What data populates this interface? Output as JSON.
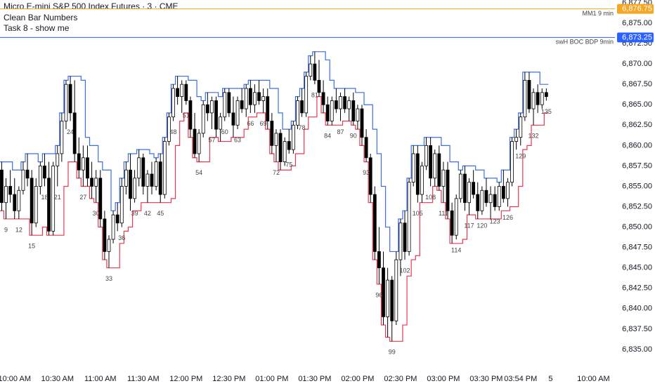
{
  "chart_data": {
    "type": "candlestick",
    "title": "Micro E-mini S&P 500 Index Futures · 3 · CME",
    "subtitle": "Clean Bar Numbers",
    "annotation": "Task 8 - show me",
    "up_color": "#ffffff",
    "down_color": "#000000",
    "upper_color": "#3d6fe0",
    "lower_color": "#e8384f",
    "xlim": [
      7.6,
      151
    ],
    "xticks": [
      {
        "value": 11,
        "label": "10:00 AM"
      },
      {
        "value": 21,
        "label": "10:30 AM"
      },
      {
        "value": 31,
        "label": "11:00 AM"
      },
      {
        "value": 41,
        "label": "11:30 AM"
      },
      {
        "value": 51,
        "label": "12:00 PM"
      },
      {
        "value": 61,
        "label": "12:30 PM"
      },
      {
        "value": 71,
        "label": "01:00 PM"
      },
      {
        "value": 81,
        "label": "01:30 PM"
      },
      {
        "value": 91,
        "label": "02:00 PM"
      },
      {
        "value": 101,
        "label": "02:30 PM"
      },
      {
        "value": 111,
        "label": "03:00 PM"
      },
      {
        "value": 121,
        "label": "03:30 PM"
      },
      {
        "value": 129,
        "label": "03:54 PM"
      },
      {
        "value": 136,
        "label": "5"
      },
      {
        "value": 146,
        "label": "10:00 AM"
      }
    ],
    "ylim": [
      6833.1,
      6877.84
    ],
    "yticks": [
      {
        "value": 6835,
        "label": "6,835.00"
      },
      {
        "value": 6837.5,
        "label": "6,837.50"
      },
      {
        "value": 6840,
        "label": "6,840.00"
      },
      {
        "value": 6842.5,
        "label": "6,842.50"
      },
      {
        "value": 6845,
        "label": "6,845.00"
      },
      {
        "value": 6847.5,
        "label": "6,847.50"
      },
      {
        "value": 6850,
        "label": "6,850.00"
      },
      {
        "value": 6852.5,
        "label": "6,852.50"
      },
      {
        "value": 6855,
        "label": "6,855.00"
      },
      {
        "value": 6857.5,
        "label": "6,857.50"
      },
      {
        "value": 6860,
        "label": "6,860.00"
      },
      {
        "value": 6862.5,
        "label": "6,862.50"
      },
      {
        "value": 6865,
        "label": "6,865.00"
      },
      {
        "value": 6867.5,
        "label": "6,867.50"
      },
      {
        "value": 6870,
        "label": "6,870.00"
      },
      {
        "value": 6872.5,
        "label": "6,872.50"
      },
      {
        "value": 6875,
        "label": "6,875.00"
      },
      {
        "value": 6877.5,
        "label": "6,877.50"
      }
    ],
    "levels": [
      {
        "name": "MM1 9 min",
        "value": 6876.75,
        "label": "6,876.75",
        "color": "#f5a623"
      },
      {
        "name": "swH BOC BDP 9min",
        "value": 6873.25,
        "label": "6,873.25",
        "color": "#2962ff"
      }
    ],
    "bar_numbers": [
      9,
      12,
      15,
      18,
      21,
      24,
      27,
      30,
      33,
      36,
      39,
      42,
      45,
      48,
      51,
      54,
      57,
      60,
      63,
      66,
      69,
      72,
      75,
      78,
      81,
      84,
      87,
      90,
      93,
      96,
      99,
      102,
      105,
      108,
      111,
      114,
      117,
      120,
      123,
      126,
      129,
      132,
      135
    ],
    "x": [
      8,
      9,
      10,
      11,
      12,
      13,
      14,
      15,
      16,
      17,
      18,
      19,
      20,
      21,
      22,
      23,
      24,
      25,
      26,
      27,
      28,
      29,
      30,
      31,
      32,
      33,
      34,
      35,
      36,
      37,
      38,
      39,
      40,
      41,
      42,
      43,
      44,
      45,
      46,
      47,
      48,
      49,
      50,
      51,
      52,
      53,
      54,
      55,
      56,
      57,
      58,
      59,
      60,
      61,
      62,
      63,
      64,
      65,
      66,
      67,
      68,
      69,
      70,
      71,
      72,
      73,
      74,
      75,
      76,
      77,
      78,
      79,
      80,
      81,
      82,
      83,
      84,
      85,
      86,
      87,
      88,
      89,
      90,
      91,
      92,
      93,
      94,
      95,
      96,
      97,
      98,
      99,
      100,
      101,
      102,
      103,
      104,
      105,
      106,
      107,
      108,
      109,
      110,
      111,
      112,
      113,
      114,
      115,
      116,
      117,
      118,
      119,
      120,
      121,
      122,
      123,
      124,
      125,
      126,
      127,
      128,
      129,
      130,
      131,
      132,
      133,
      134,
      135
    ],
    "ohlc": [
      [
        6857,
        6858,
        6852,
        6853
      ],
      [
        6853,
        6856,
        6851,
        6855
      ],
      [
        6855,
        6857,
        6853,
        6854
      ],
      [
        6854,
        6856,
        6851,
        6852
      ],
      [
        6852,
        6855,
        6851,
        6854.5
      ],
      [
        6854.5,
        6858,
        6854,
        6857
      ],
      [
        6857,
        6859,
        6855,
        6856
      ],
      [
        6856,
        6857,
        6849,
        6850.5
      ],
      [
        6850.5,
        6856,
        6850,
        6855
      ],
      [
        6855,
        6858,
        6854,
        6857.5
      ],
      [
        6857.5,
        6859,
        6855,
        6856
      ],
      [
        6856,
        6858,
        6849,
        6849.5
      ],
      [
        6849.5,
        6858,
        6849,
        6857.5
      ],
      [
        6857.5,
        6860,
        6855,
        6859
      ],
      [
        6859,
        6864,
        6858,
        6863
      ],
      [
        6863,
        6868,
        6862,
        6867.5
      ],
      [
        6867.5,
        6868.5,
        6863,
        6864
      ],
      [
        6864,
        6868,
        6858,
        6859
      ],
      [
        6859,
        6861,
        6856,
        6857
      ],
      [
        6857,
        6860,
        6855,
        6858.5
      ],
      [
        6858.5,
        6860,
        6855,
        6856
      ],
      [
        6856,
        6858,
        6853.5,
        6855
      ],
      [
        6855,
        6857,
        6853,
        6856
      ],
      [
        6856,
        6857,
        6850,
        6851
      ],
      [
        6851,
        6852,
        6846,
        6847
      ],
      [
        6847,
        6849,
        6845,
        6848.5
      ],
      [
        6848.5,
        6852,
        6848,
        6851.5
      ],
      [
        6851.5,
        6853,
        6849.5,
        6850.5
      ],
      [
        6850.5,
        6856,
        6850,
        6855
      ],
      [
        6855,
        6858,
        6854,
        6857
      ],
      [
        6857,
        6859,
        6852,
        6853.5
      ],
      [
        6853.5,
        6857,
        6853,
        6856
      ],
      [
        6856,
        6859.5,
        6855,
        6858.5
      ],
      [
        6858.5,
        6859,
        6854,
        6855
      ],
      [
        6855,
        6857,
        6853,
        6856.5
      ],
      [
        6856.5,
        6858,
        6854,
        6855
      ],
      [
        6855,
        6858.5,
        6854.5,
        6858
      ],
      [
        6858,
        6859,
        6853,
        6854
      ],
      [
        6854,
        6861,
        6853.5,
        6860.5
      ],
      [
        6860.5,
        6864,
        6860,
        6863.5
      ],
      [
        6863.5,
        6867.5,
        6863,
        6867
      ],
      [
        6867,
        6868.5,
        6865,
        6866
      ],
      [
        6866,
        6868,
        6864,
        6867.5
      ],
      [
        6867.5,
        6868,
        6865,
        6865.5
      ],
      [
        6865.5,
        6866,
        6861,
        6862
      ],
      [
        6862,
        6864,
        6858.5,
        6859
      ],
      [
        6859,
        6862,
        6858,
        6861.5
      ],
      [
        6861.5,
        6865.5,
        6861,
        6865
      ],
      [
        6865,
        6866.5,
        6863,
        6864
      ],
      [
        6864,
        6866,
        6862,
        6865.5
      ],
      [
        6865.5,
        6866,
        6861,
        6862
      ],
      [
        6862,
        6864,
        6860.5,
        6863.5
      ],
      [
        6863.5,
        6867,
        6863,
        6866.5
      ],
      [
        6866.5,
        6867,
        6863.5,
        6864
      ],
      [
        6864,
        6866,
        6861,
        6862.5
      ],
      [
        6862.5,
        6866,
        6862,
        6865.5
      ],
      [
        6865.5,
        6867,
        6864,
        6864.5
      ],
      [
        6864.5,
        6867.5,
        6863.5,
        6867
      ],
      [
        6867,
        6868,
        6864,
        6865
      ],
      [
        6865,
        6867.5,
        6864,
        6866.5
      ],
      [
        6866.5,
        6868,
        6865,
        6865.5
      ],
      [
        6865.5,
        6867,
        6864,
        6866
      ],
      [
        6866,
        6867,
        6862,
        6863
      ],
      [
        6863,
        6864,
        6859,
        6860
      ],
      [
        6860,
        6862,
        6858,
        6861.5
      ],
      [
        6861.5,
        6862,
        6857,
        6858
      ],
      [
        6858,
        6861,
        6857.5,
        6860.5
      ],
      [
        6860.5,
        6862,
        6859,
        6859.5
      ],
      [
        6859.5,
        6863,
        6859,
        6862.5
      ],
      [
        6862.5,
        6866,
        6862,
        6865.5
      ],
      [
        6865.5,
        6867,
        6863.5,
        6864
      ],
      [
        6864,
        6869,
        6863.5,
        6868.5
      ],
      [
        6868.5,
        6871,
        6868,
        6870
      ],
      [
        6870,
        6871.5,
        6867.5,
        6868
      ],
      [
        6868,
        6870.5,
        6866,
        6866.5
      ],
      [
        6866.5,
        6868,
        6864,
        6865
      ],
      [
        6865,
        6866,
        6862.5,
        6863
      ],
      [
        6863,
        6866,
        6862.5,
        6865.5
      ],
      [
        6865.5,
        6867,
        6864,
        6864.5
      ],
      [
        6864.5,
        6866.5,
        6863,
        6866
      ],
      [
        6866,
        6867,
        6864,
        6864.5
      ],
      [
        6864.5,
        6866,
        6863,
        6865.5
      ],
      [
        6865.5,
        6866.5,
        6862.5,
        6863
      ],
      [
        6863,
        6865,
        6862,
        6864.5
      ],
      [
        6864.5,
        6865,
        6860,
        6861
      ],
      [
        6861,
        6862,
        6858,
        6858.5
      ],
      [
        6858.5,
        6859,
        6853,
        6854
      ],
      [
        6854,
        6855,
        6846,
        6847
      ],
      [
        6847,
        6850,
        6843,
        6845
      ],
      [
        6845,
        6847,
        6838,
        6839
      ],
      [
        6839,
        6845,
        6836.5,
        6843.5
      ],
      [
        6843.5,
        6844,
        6836,
        6838.5
      ],
      [
        6838.5,
        6847,
        6838,
        6846
      ],
      [
        6846,
        6851,
        6844,
        6850.5
      ],
      [
        6850.5,
        6852,
        6846,
        6847
      ],
      [
        6847,
        6856,
        6846.5,
        6855.5
      ],
      [
        6855.5,
        6860,
        6855,
        6859
      ],
      [
        6859,
        6860,
        6853,
        6854
      ],
      [
        6854,
        6858,
        6853,
        6857.5
      ],
      [
        6857.5,
        6861,
        6857,
        6860
      ],
      [
        6860,
        6861,
        6855,
        6856
      ],
      [
        6856,
        6859.5,
        6855,
        6859
      ],
      [
        6859,
        6860,
        6854.5,
        6855
      ],
      [
        6855,
        6858,
        6853,
        6857
      ],
      [
        6857,
        6858,
        6851,
        6852
      ],
      [
        6852,
        6853,
        6848,
        6849
      ],
      [
        6849,
        6854,
        6848.5,
        6853.5
      ],
      [
        6853.5,
        6857,
        6853,
        6856.5
      ],
      [
        6856.5,
        6857.5,
        6852,
        6853
      ],
      [
        6853,
        6856,
        6851.5,
        6855.5
      ],
      [
        6855.5,
        6857,
        6853.5,
        6854
      ],
      [
        6854,
        6855.5,
        6851,
        6852
      ],
      [
        6852,
        6855,
        6851.5,
        6854.5
      ],
      [
        6854.5,
        6856,
        6852.5,
        6853
      ],
      [
        6853,
        6855,
        6851,
        6854
      ],
      [
        6854,
        6855,
        6852,
        6852.5
      ],
      [
        6852.5,
        6855.5,
        6852,
        6855
      ],
      [
        6855,
        6857,
        6853,
        6853.5
      ],
      [
        6853.5,
        6856,
        6852.5,
        6855.5
      ],
      [
        6855.5,
        6861,
        6855,
        6860.5
      ],
      [
        6860.5,
        6862,
        6859.5,
        6861
      ],
      [
        6861,
        6864,
        6860,
        6863.5
      ],
      [
        6863.5,
        6869,
        6863,
        6868
      ],
      [
        6868,
        6869,
        6864,
        6864.5
      ],
      [
        6864.5,
        6867,
        6862.5,
        6866.5
      ],
      [
        6866.5,
        6867.5,
        6864,
        6865
      ],
      [
        6865,
        6867,
        6864.5,
        6866.5
      ],
      [
        6866.5,
        6867,
        6865.5,
        6866
      ]
    ]
  }
}
